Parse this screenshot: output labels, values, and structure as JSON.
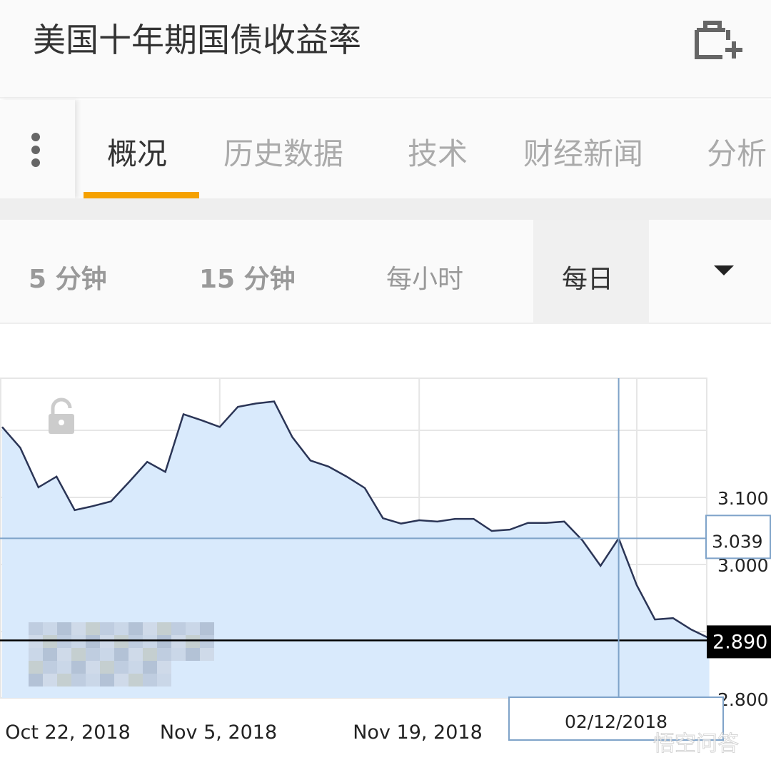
{
  "header": {
    "title": "美国十年期国债收益率",
    "add_icon": "briefcase-plus-icon"
  },
  "tabs": [
    {
      "label": "概况",
      "active": true
    },
    {
      "label": "历史数据"
    },
    {
      "label": "技术"
    },
    {
      "label": "财经新闻"
    },
    {
      "label": "分析"
    }
  ],
  "periods": [
    {
      "label": "5 分钟"
    },
    {
      "label": "15 分钟"
    },
    {
      "label": "每小时"
    },
    {
      "label": "每日",
      "selected": true
    }
  ],
  "colors": {
    "accent": "#f5a100",
    "line": "#2b3556",
    "fill": "#d9eafc",
    "crosshair": "#7fa3c9"
  },
  "chart_data": {
    "type": "area",
    "x_tick_labels": [
      "Oct 22, 2018",
      "Nov 5, 2018",
      "Nov 19, 2018"
    ],
    "y_tick_labels": [
      "3.100",
      "3.000",
      "2.800"
    ],
    "ylim": [
      2.78,
      3.27
    ],
    "values": [
      3.205,
      3.174,
      3.115,
      3.131,
      3.081,
      3.087,
      3.094,
      3.123,
      3.153,
      3.138,
      3.224,
      3.215,
      3.205,
      3.235,
      3.24,
      3.243,
      3.19,
      3.155,
      3.146,
      3.131,
      3.114,
      3.069,
      3.061,
      3.066,
      3.064,
      3.068,
      3.068,
      3.05,
      3.052,
      3.062,
      3.062,
      3.064,
      3.036,
      2.998,
      3.039,
      2.969,
      2.918,
      2.92,
      2.903,
      2.89
    ],
    "crosshair": {
      "value": "3.039",
      "date": "02/12/2018"
    },
    "last_value": "2.890",
    "grid": true
  },
  "watermark": "悟空问答"
}
